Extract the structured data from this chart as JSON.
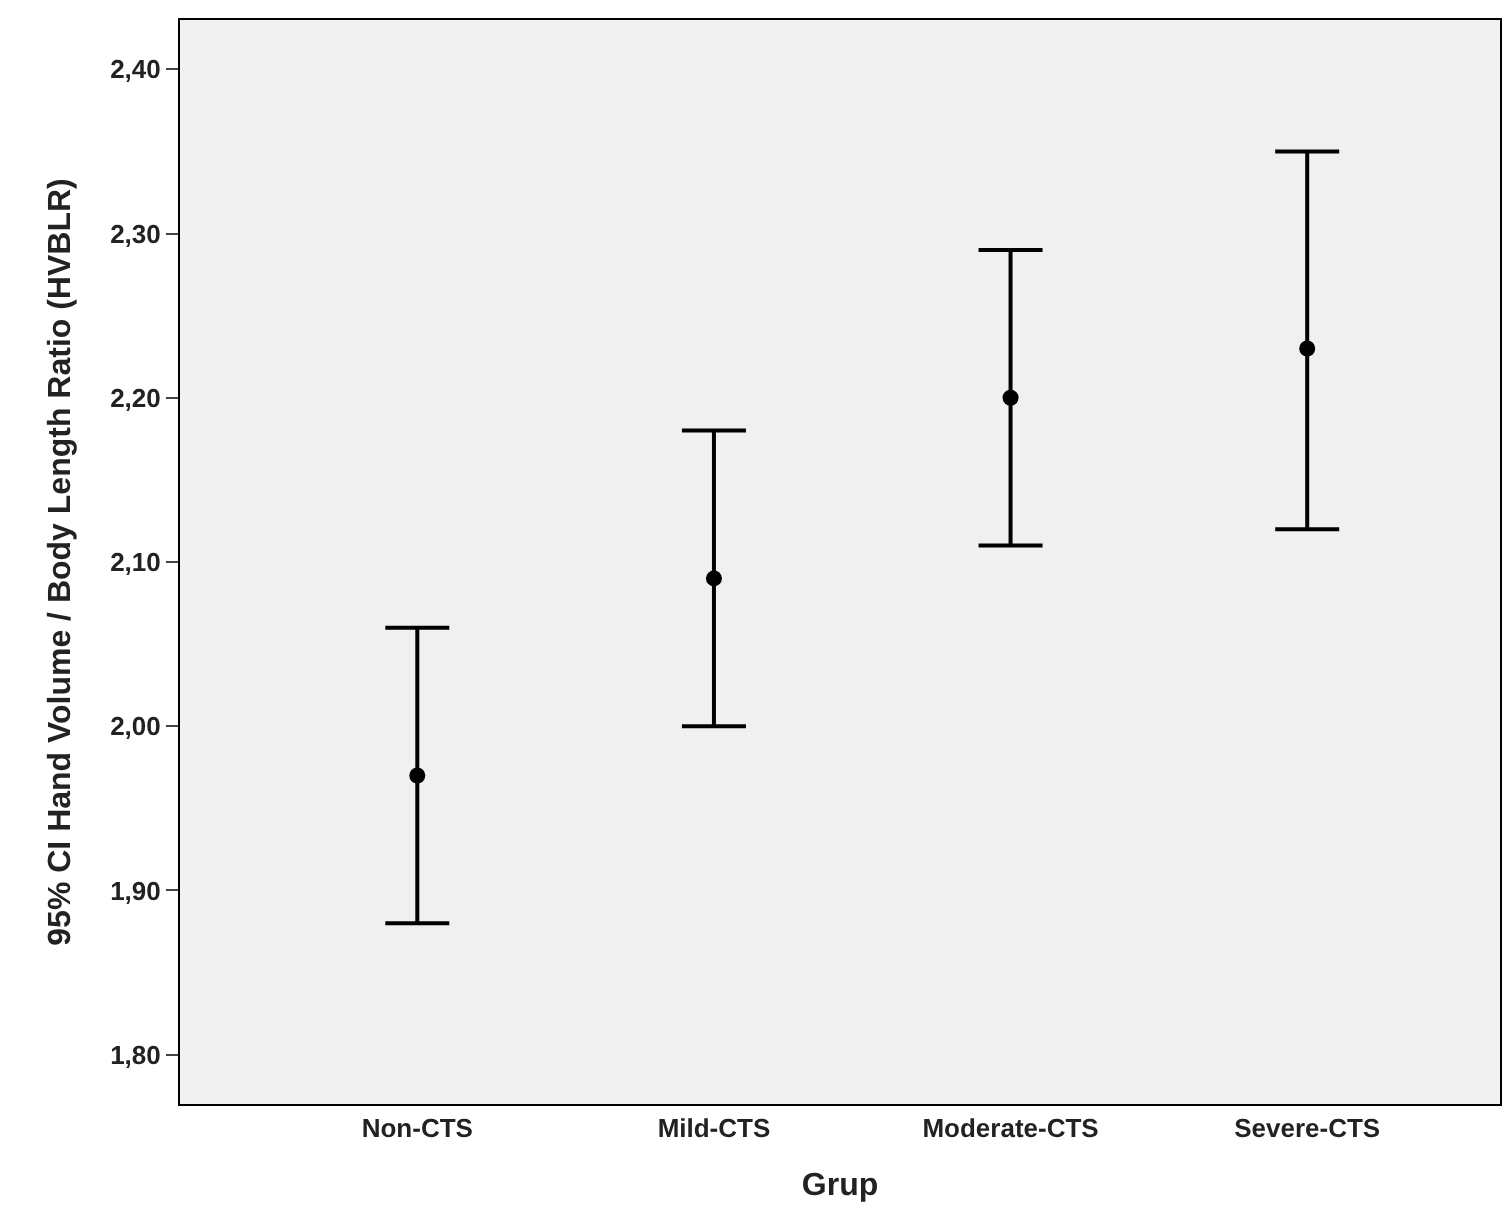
{
  "chart_data": {
    "type": "scatter",
    "xlabel": "Grup",
    "ylabel": "95% CI Hand Volume / Body Length Ratio (HVBLR)",
    "categories": [
      "Non-CTS",
      "Mild-CTS",
      "Moderate-CTS",
      "Severe-CTS"
    ],
    "values": [
      1.97,
      2.09,
      2.2,
      2.23
    ],
    "errors": [
      [
        1.88,
        2.06
      ],
      [
        2.0,
        2.18
      ],
      [
        2.11,
        2.29
      ],
      [
        2.12,
        2.35
      ]
    ],
    "color": "#000000",
    "marker": "circle",
    "ylim": [
      1.77,
      2.43
    ],
    "yticks": [
      {
        "value": 1.8,
        "label": "1,80"
      },
      {
        "value": 1.9,
        "label": "1,90"
      },
      {
        "value": 2.0,
        "label": "2,00"
      },
      {
        "value": 2.1,
        "label": "2,10"
      },
      {
        "value": 2.2,
        "label": "2,20"
      },
      {
        "value": 2.3,
        "label": "2,30"
      },
      {
        "value": 2.4,
        "label": "2,40"
      }
    ],
    "grid": false
  }
}
